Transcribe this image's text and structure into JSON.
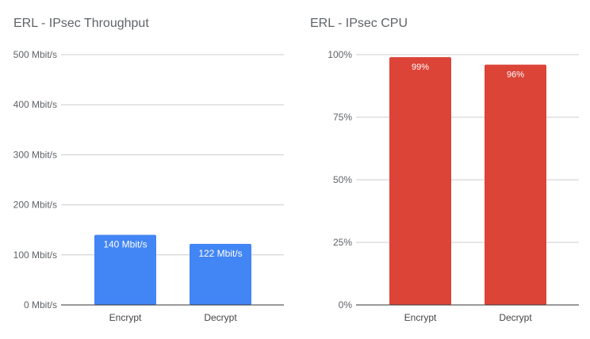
{
  "chart_data": [
    {
      "type": "bar",
      "title": "ERL - IPsec Throughput",
      "categories": [
        "Encrypt",
        "Decrypt"
      ],
      "values": [
        140,
        122
      ],
      "data_labels": [
        "140 Mbit/s",
        "122 Mbit/s"
      ],
      "ylim": [
        0,
        500
      ],
      "yticks": [
        0,
        100,
        200,
        300,
        400,
        500
      ],
      "ytick_labels": [
        "0 Mbit/s",
        "100 Mbit/s",
        "200 Mbit/s",
        "300 Mbit/s",
        "400 Mbit/s",
        "500 Mbit/s"
      ],
      "xlabel": "",
      "ylabel": "",
      "grid": true,
      "color": "#4285f4"
    },
    {
      "type": "bar",
      "title": "ERL - IPsec CPU",
      "categories": [
        "Encrypt",
        "Decrypt"
      ],
      "values": [
        99,
        96
      ],
      "data_labels": [
        "99%",
        "96%"
      ],
      "ylim": [
        0,
        100
      ],
      "yticks": [
        0,
        25,
        50,
        75,
        100
      ],
      "ytick_labels": [
        "0%",
        "25%",
        "50%",
        "75%",
        "100%"
      ],
      "xlabel": "",
      "ylabel": "",
      "grid": true,
      "color": "#db4437"
    }
  ]
}
